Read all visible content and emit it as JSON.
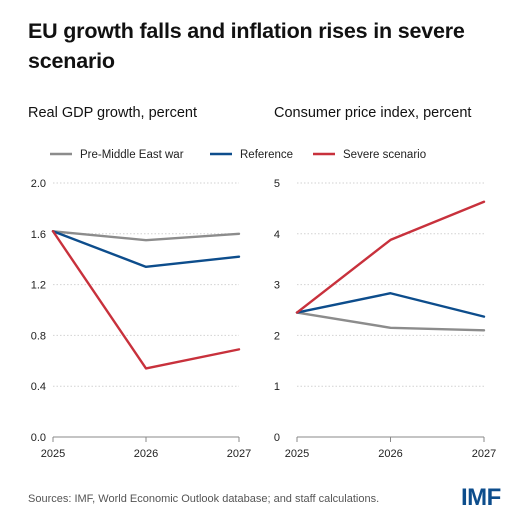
{
  "title": "EU growth falls and inflation rises in severe scenario",
  "source": "Sources: IMF, World Economic Outlook database; and staff calculations.",
  "logo": "IMF",
  "legend": [
    {
      "label": "Pre-Middle East war",
      "color": "#8c8c8c"
    },
    {
      "label": "Reference",
      "color": "#0d4d8c"
    },
    {
      "label": "Severe scenario",
      "color": "#c8313c"
    }
  ],
  "chart_data": [
    {
      "type": "line",
      "title": "Real GDP growth, percent",
      "x": [
        "2025",
        "2026",
        "2027"
      ],
      "ylim": [
        0,
        2.0
      ],
      "yticks": [
        "0.0",
        "0.4",
        "0.8",
        "1.2",
        "1.6",
        "2.0"
      ],
      "grid": true,
      "legend": "top",
      "series": [
        {
          "name": "Pre-Middle East war",
          "color": "#8c8c8c",
          "values": [
            1.62,
            1.55,
            1.6
          ]
        },
        {
          "name": "Reference",
          "color": "#0d4d8c",
          "values": [
            1.62,
            1.34,
            1.42
          ]
        },
        {
          "name": "Severe scenario",
          "color": "#c8313c",
          "values": [
            1.62,
            0.54,
            0.69
          ]
        }
      ]
    },
    {
      "type": "line",
      "title": "Consumer price index, percent",
      "x": [
        "2025",
        "2026",
        "2027"
      ],
      "ylim": [
        0,
        5
      ],
      "yticks": [
        "0",
        "1",
        "2",
        "3",
        "4",
        "5"
      ],
      "grid": true,
      "legend": "top",
      "series": [
        {
          "name": "Pre-Middle East war",
          "color": "#8c8c8c",
          "values": [
            2.45,
            2.15,
            2.1
          ]
        },
        {
          "name": "Reference",
          "color": "#0d4d8c",
          "values": [
            2.45,
            2.83,
            2.37
          ]
        },
        {
          "name": "Severe scenario",
          "color": "#c8313c",
          "values": [
            2.45,
            3.88,
            4.63
          ]
        }
      ]
    }
  ]
}
